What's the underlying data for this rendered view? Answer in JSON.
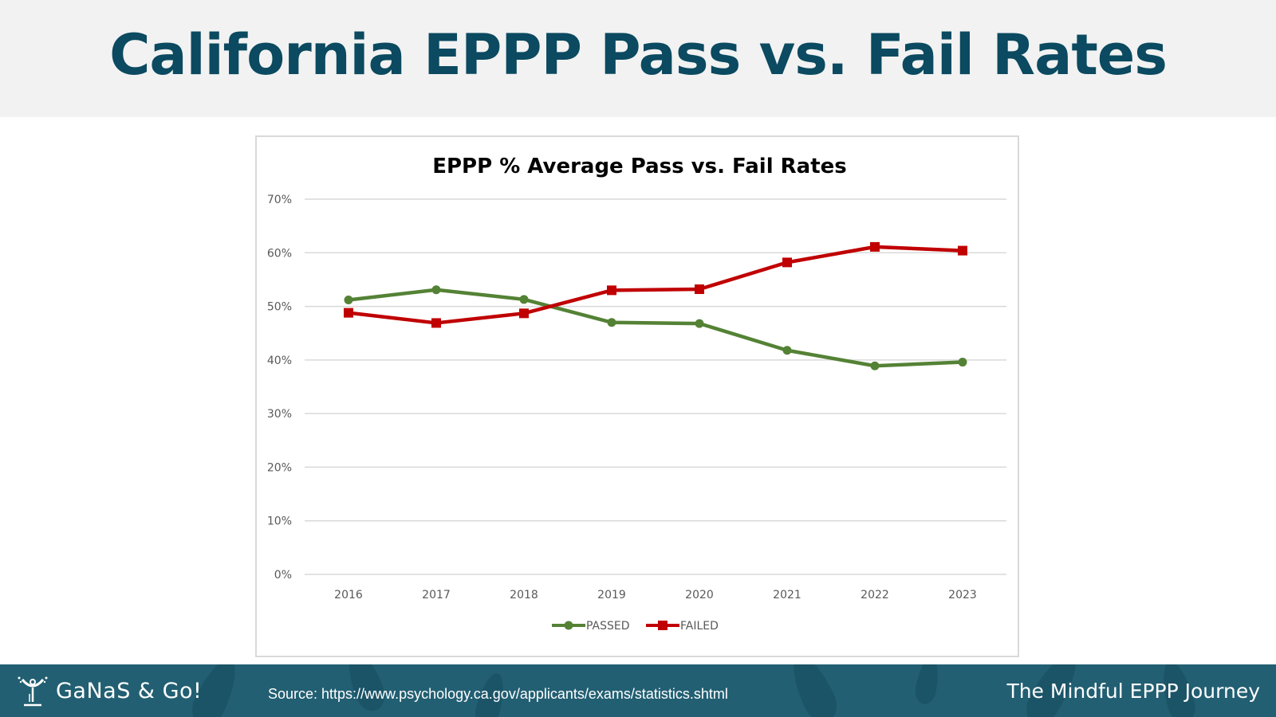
{
  "slide": {
    "title": "California EPPP Pass vs. Fail Rates"
  },
  "footer": {
    "logo_text": "GaNaS & Go!",
    "source": "Source: https://www.psychology.ca.gov/applicants/exams/statistics.shtml",
    "tagline": "The Mindful EPPP Journey"
  },
  "chart_data": {
    "type": "line",
    "title": "EPPP % Average Pass vs. Fail Rates",
    "xlabel": "",
    "ylabel": "",
    "x": [
      "2016",
      "2017",
      "2018",
      "2019",
      "2020",
      "2021",
      "2022",
      "2023"
    ],
    "ylim": [
      0,
      70
    ],
    "yticks": [
      0,
      10,
      20,
      30,
      40,
      50,
      60,
      70
    ],
    "ytick_labels": [
      "0%",
      "10%",
      "20%",
      "30%",
      "40%",
      "50%",
      "60%",
      "70%"
    ],
    "grid": true,
    "legend": "bottom-center",
    "series": [
      {
        "name": "PASSED",
        "color": "#548235",
        "marker": "circle",
        "values": [
          51.2,
          53.1,
          51.3,
          47.0,
          46.8,
          41.8,
          38.9,
          39.6
        ]
      },
      {
        "name": "FAILED",
        "color": "#c00000",
        "marker": "square",
        "values": [
          48.8,
          46.9,
          48.7,
          53.0,
          53.2,
          58.2,
          61.1,
          60.4
        ]
      }
    ]
  }
}
